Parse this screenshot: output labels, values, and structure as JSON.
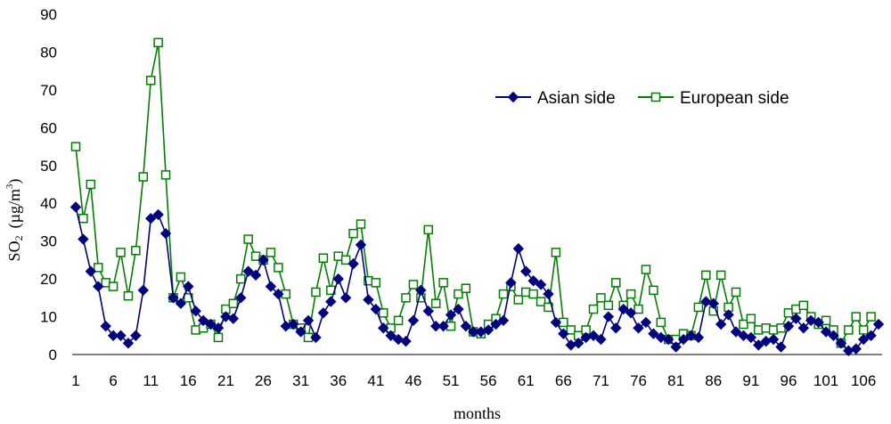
{
  "chart_data": {
    "type": "line",
    "title": "",
    "xlabel": "months",
    "ylabel": "SO2 (µg/m3)",
    "ylabel_parts": {
      "main": "SO",
      "sub": "2",
      "unit": "(µg/m",
      "sup": "3",
      "close": ")"
    },
    "ylim": [
      0,
      90
    ],
    "yticks": [
      0,
      10,
      20,
      30,
      40,
      50,
      60,
      70,
      80,
      90
    ],
    "xlim": [
      1,
      108
    ],
    "xticks": [
      1,
      6,
      11,
      16,
      21,
      26,
      31,
      36,
      41,
      46,
      51,
      56,
      61,
      66,
      71,
      76,
      81,
      86,
      91,
      96,
      101,
      106
    ],
    "legend_position": "top-right",
    "series": [
      {
        "name": "Asian side",
        "color": "#000080",
        "marker": "diamond",
        "values": [
          39,
          30.5,
          22,
          18,
          7.5,
          5,
          5,
          3,
          5,
          17,
          36,
          37,
          32,
          15,
          13.5,
          18,
          11.5,
          9,
          8,
          7,
          10,
          9.5,
          15,
          22,
          21,
          25,
          18,
          16,
          7.5,
          8,
          6,
          9,
          4.5,
          11,
          14,
          20,
          15,
          24,
          29,
          14.5,
          12,
          7,
          5,
          4,
          3.5,
          9,
          17,
          11.5,
          7.5,
          7.5,
          10.5,
          12,
          7.5,
          6,
          6,
          6.5,
          8,
          9,
          19,
          28,
          22,
          19.5,
          18.5,
          16,
          8.5,
          5.5,
          2.5,
          3,
          4.5,
          5,
          4,
          10,
          7,
          12,
          11,
          7,
          8.5,
          5.5,
          4.5,
          4,
          2,
          4,
          5,
          4.5,
          14,
          13.5,
          8,
          10.5,
          6,
          5,
          4.5,
          2.5,
          3.5,
          4,
          2,
          7.5,
          9.5,
          7,
          9,
          8.5,
          6,
          5,
          3,
          1,
          1.5,
          4,
          5,
          8
        ]
      },
      {
        "name": "European side",
        "color": "#008000",
        "marker": "square",
        "values": [
          55,
          36,
          45,
          23,
          19,
          18,
          27,
          15.5,
          27.5,
          47,
          72.5,
          82.5,
          47.5,
          15,
          20.5,
          15,
          6.5,
          7,
          8,
          4.5,
          12,
          13.5,
          20,
          30.5,
          26,
          25,
          27,
          23,
          16,
          8,
          7,
          4.5,
          16.5,
          25.5,
          17,
          26,
          25,
          32,
          34.5,
          19.5,
          19,
          11,
          7,
          9,
          15,
          18.5,
          15,
          33,
          13.5,
          19,
          7.5,
          16,
          17.5,
          6,
          5.5,
          8,
          9.5,
          16,
          18,
          14.5,
          16.5,
          16,
          14,
          12.5,
          27,
          8.5,
          6.5,
          5,
          6.5,
          12,
          15,
          13,
          19,
          13,
          16,
          12,
          22.5,
          17,
          8.5,
          4,
          4,
          5.5,
          5,
          12.5,
          21,
          11.5,
          21,
          12.5,
          16.5,
          8,
          9.5,
          6.5,
          7,
          6.5,
          7,
          11,
          12,
          13,
          10,
          8,
          9,
          6.5,
          3,
          6.5,
          10,
          6.5,
          10
        ]
      }
    ]
  }
}
